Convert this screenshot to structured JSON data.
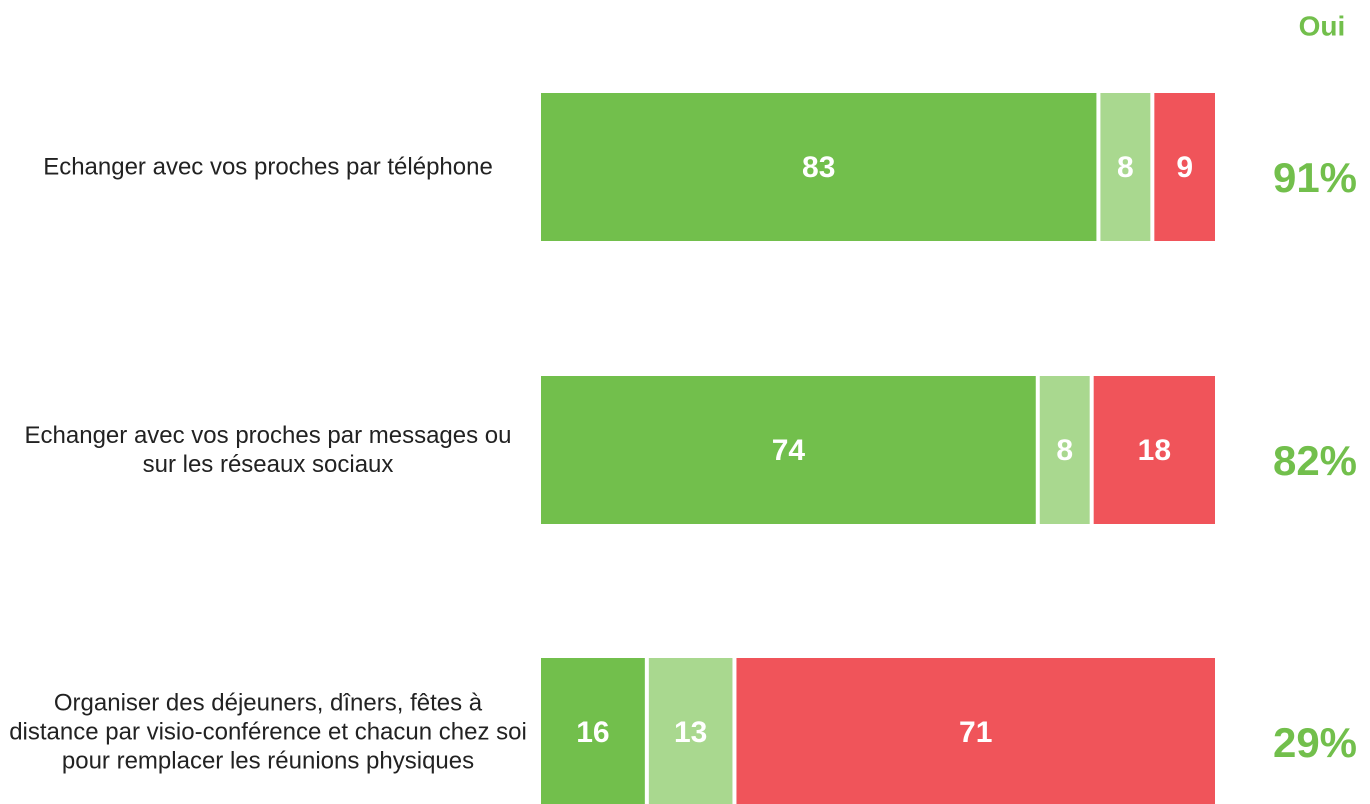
{
  "chart_data": {
    "type": "stacked-bar-horizontal",
    "categories": [
      "Echanger avec vos proches par téléphone",
      "Echanger avec vos proches par messages ou sur les réseaux sociaux",
      "Organiser des déjeuners, dîners, fêtes à distance par visio-conférence et chacun chez soi pour remplacer les réunions physiques"
    ],
    "series": [
      {
        "color": "#72bf4c",
        "values": [
          83,
          74,
          16
        ]
      },
      {
        "color": "#a9d88f",
        "values": [
          8,
          8,
          13
        ]
      },
      {
        "color": "#f0545a",
        "values": [
          9,
          18,
          71
        ]
      }
    ],
    "totals": {
      "title": "Oui",
      "color": "#72bf4c",
      "values": [
        91,
        82,
        29
      ],
      "value_labels": [
        "91%",
        "82%",
        "29%"
      ]
    }
  }
}
